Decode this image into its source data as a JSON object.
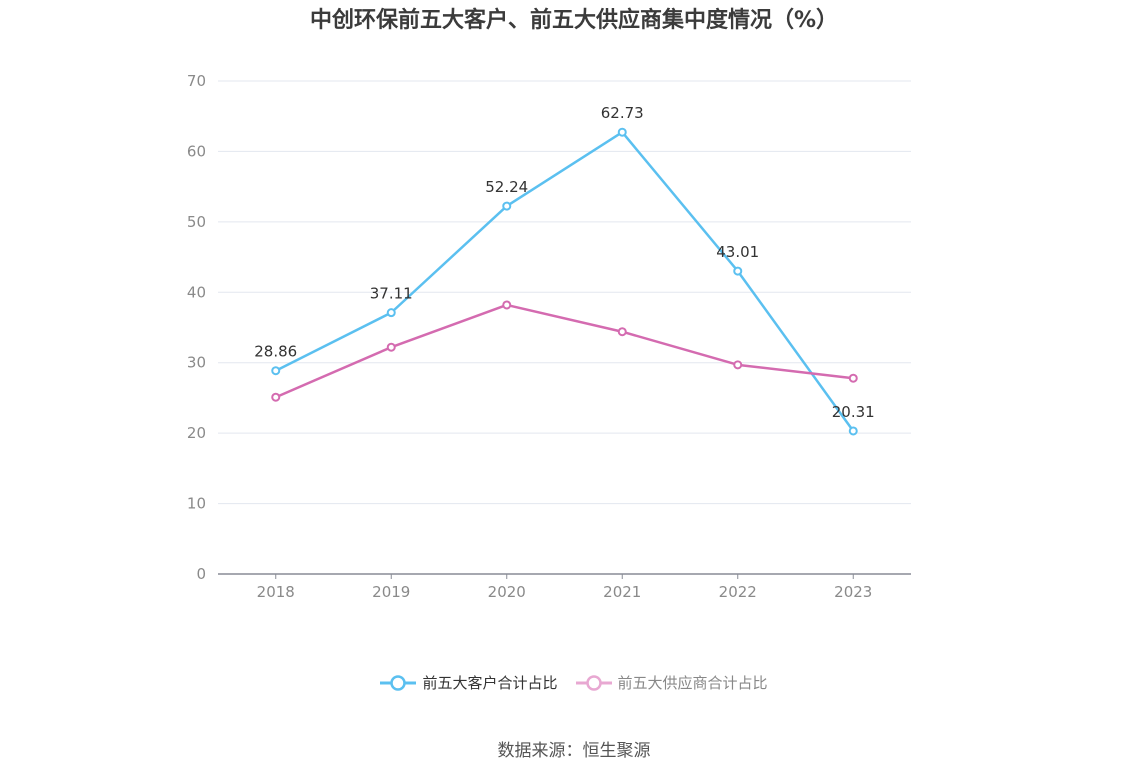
{
  "chart_data": {
    "type": "line",
    "title": "中创环保前五大客户、前五大供应商集中度情况（%）",
    "categories": [
      "2018",
      "2019",
      "2020",
      "2021",
      "2022",
      "2023"
    ],
    "ylim": [
      0,
      70
    ],
    "yticks": [
      "0",
      "10",
      "20",
      "30",
      "40",
      "50",
      "60",
      "70"
    ],
    "grid": true,
    "legend_position": "bottom",
    "series": [
      {
        "name": "前五大客户合计占比",
        "color": "#5bc0f0",
        "values": [
          28.86,
          37.11,
          52.24,
          62.73,
          43.01,
          20.31
        ],
        "labels": [
          "28.86",
          "37.11",
          "52.24",
          "62.73",
          "43.01",
          "20.31"
        ]
      },
      {
        "name": "前五大供应商合计占比",
        "color": "#d46bb0",
        "values": [
          25.1,
          32.2,
          38.2,
          34.4,
          29.7,
          27.8
        ]
      }
    ]
  },
  "source": "数据来源：恒生聚源"
}
